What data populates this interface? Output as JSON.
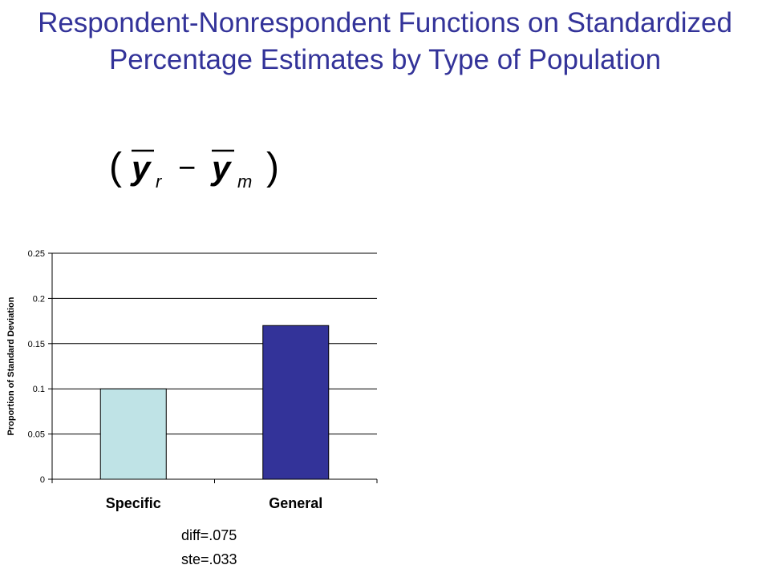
{
  "slide": {
    "title": "Respondent-Nonrespondent Functions on Standardized Percentage Estimates by Type of Population",
    "formula": {
      "open_paren": "(",
      "y1": "y",
      "sub1": "r",
      "minus": "−",
      "y2": "y",
      "sub2": "m",
      "close_paren": ")"
    },
    "stats": {
      "diff": "diff=.075",
      "ste": "ste=.033"
    }
  },
  "colors": {
    "title": "#333399",
    "bar_specific": "#bfe3e6",
    "bar_general": "#333399"
  },
  "chart_data": {
    "type": "bar",
    "categories": [
      "Specific",
      "General"
    ],
    "values": [
      0.1,
      0.17
    ],
    "ylabel": "Proportion of Standard Deviation",
    "xlabel": "",
    "ylim": [
      0,
      0.25
    ],
    "yticks": [
      0,
      0.05,
      0.1,
      0.15,
      0.2,
      0.25
    ],
    "ytick_labels": [
      "0",
      "0.05",
      "0.1",
      "0.15",
      "0.2",
      "0.25"
    ],
    "grid": true,
    "legend": "none"
  }
}
